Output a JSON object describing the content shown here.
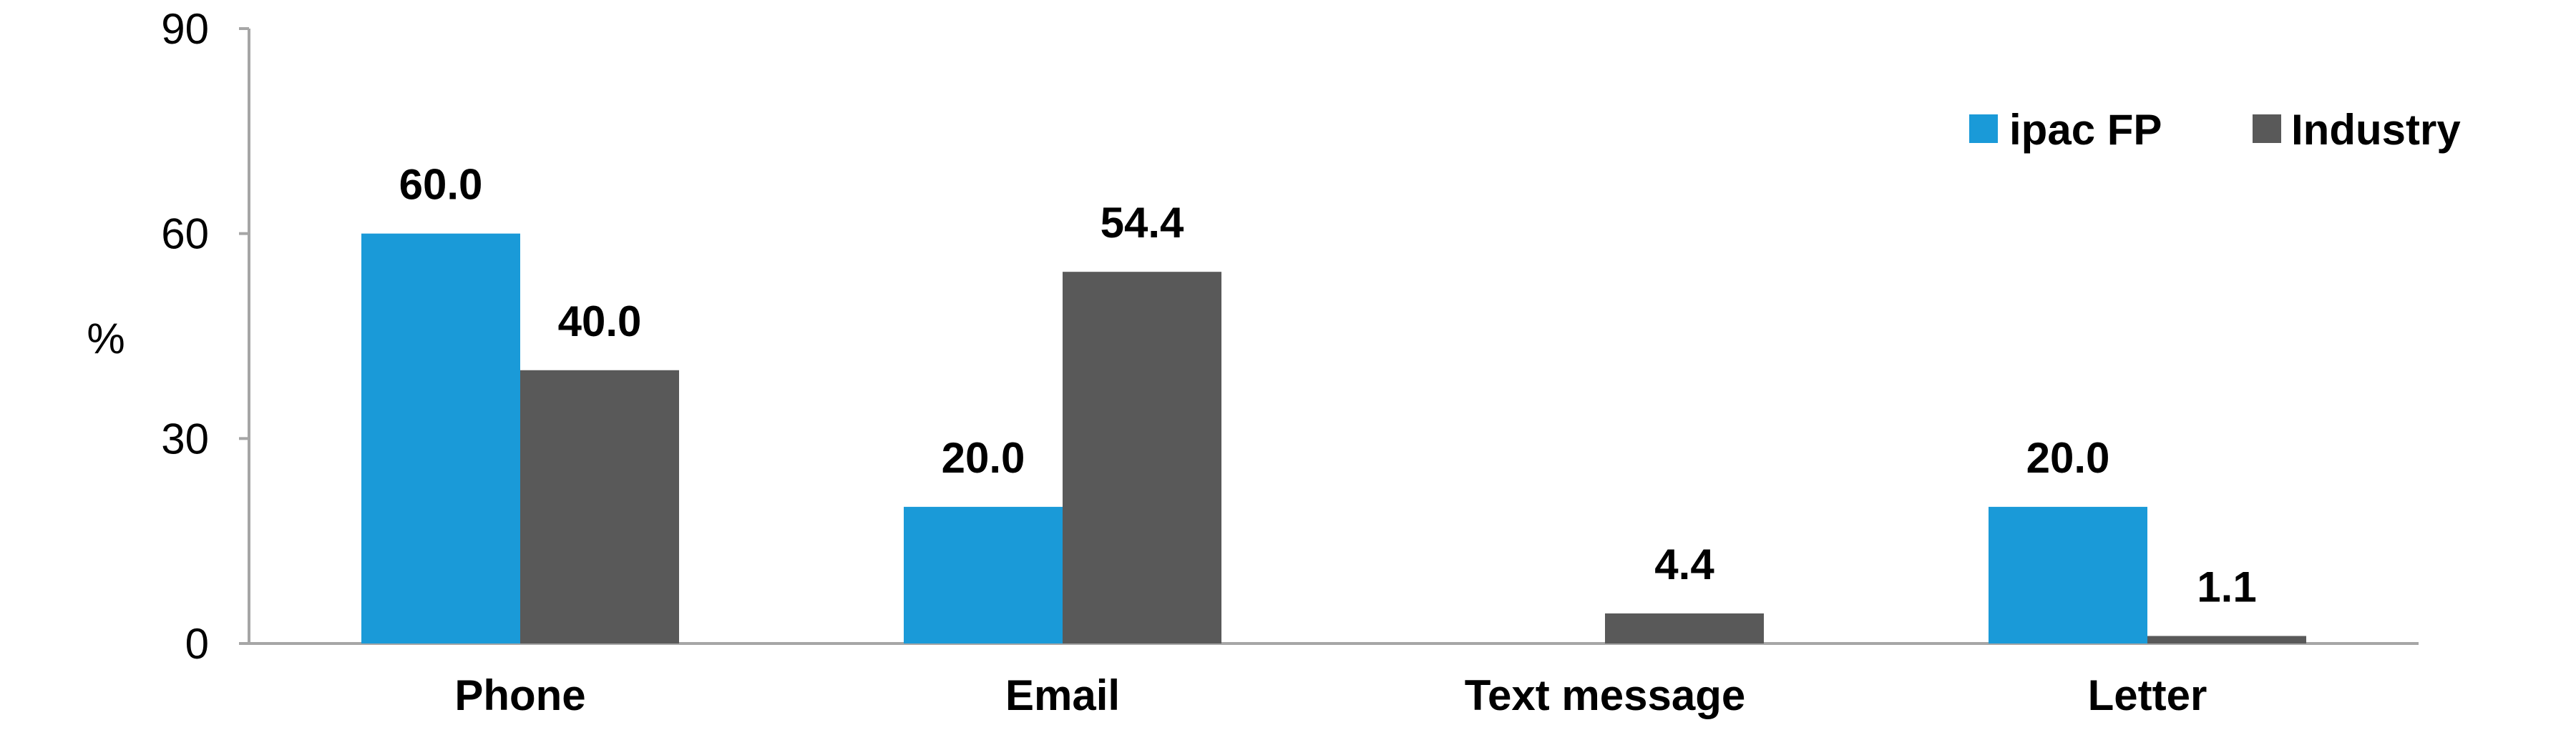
{
  "chart_data": {
    "type": "bar",
    "title": "",
    "xlabel": "",
    "ylabel": "%",
    "ylim": [
      0,
      90
    ],
    "yticks": [
      0,
      30,
      60,
      90
    ],
    "grid": false,
    "legend_position": "top-right",
    "categories": [
      "Phone",
      "Email",
      "Text message",
      "Letter"
    ],
    "series": [
      {
        "name": "ipac FP",
        "color": "#1a9ad8",
        "values": [
          60.0,
          20.0,
          null,
          20.0
        ],
        "labels": [
          "60.0",
          "20.0",
          "",
          "20.0"
        ]
      },
      {
        "name": "Industry",
        "color": "#595959",
        "values": [
          40.0,
          54.4,
          4.4,
          1.1
        ],
        "labels": [
          "40.0",
          "54.4",
          "4.4",
          "1.1"
        ]
      }
    ]
  }
}
